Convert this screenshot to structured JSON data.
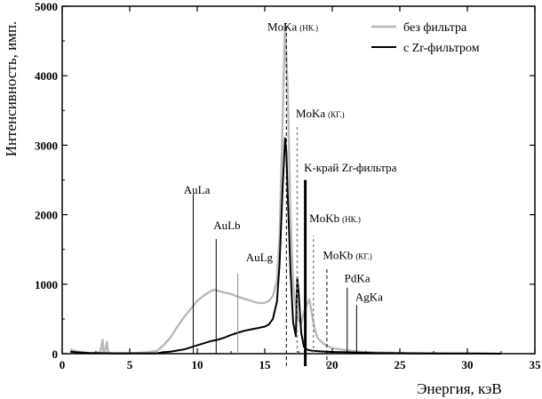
{
  "chart_data": {
    "type": "line",
    "xlabel": "Энергия,  кэВ",
    "ylabel": "Интенсивность,  имп.",
    "xlim": [
      0,
      35
    ],
    "ylim": [
      0,
      5000
    ],
    "xticks": [
      0,
      5,
      10,
      15,
      20,
      25,
      30,
      35
    ],
    "yticks": [
      0,
      1000,
      2000,
      3000,
      4000,
      5000
    ],
    "grid": false,
    "legend_position": "top-right",
    "colors": {
      "no_filter": "#b9b9b9",
      "zr_filter": "#000000"
    },
    "series": [
      {
        "name": "без фильтра",
        "key": "no_filter",
        "x": [
          0.6,
          0.8,
          1.2,
          2.0,
          2.8,
          3.0,
          3.05,
          3.15,
          3.3,
          3.4,
          3.5,
          3.7,
          4.0,
          5.0,
          6.0,
          7.0,
          7.5,
          8.0,
          8.5,
          9.0,
          9.5,
          10.0,
          10.5,
          11.0,
          11.3,
          11.6,
          12.0,
          12.5,
          13.0,
          13.5,
          14.0,
          14.5,
          15.0,
          15.3,
          15.6,
          15.9,
          16.1,
          16.3,
          16.5,
          16.7,
          16.9,
          17.1,
          17.3,
          17.5,
          17.7,
          17.9,
          18.1,
          18.3,
          18.5,
          18.7,
          18.9,
          19.2,
          19.5,
          20.0,
          21.0,
          22.0,
          23.0,
          24.0,
          25.0,
          27.0,
          29.0,
          31.0,
          32.5
        ],
        "values": [
          60,
          50,
          30,
          10,
          15,
          200,
          30,
          15,
          170,
          30,
          10,
          5,
          5,
          5,
          15,
          40,
          120,
          230,
          380,
          520,
          640,
          760,
          840,
          900,
          920,
          900,
          880,
          860,
          820,
          790,
          760,
          730,
          730,
          760,
          830,
          1050,
          1700,
          3200,
          4750,
          3800,
          2000,
          1000,
          650,
          480,
          430,
          600,
          700,
          780,
          560,
          350,
          230,
          170,
          120,
          80,
          50,
          30,
          20,
          15,
          10,
          5,
          3,
          2,
          0
        ]
      },
      {
        "name": "с  Zr-фильтром",
        "key": "zr_filter",
        "x": [
          0.6,
          1.0,
          2.0,
          4.0,
          6.0,
          7.0,
          7.5,
          8.0,
          9.0,
          10.0,
          11.0,
          11.5,
          12.0,
          12.5,
          13.0,
          13.5,
          14.0,
          14.5,
          15.0,
          15.3,
          15.6,
          15.9,
          16.1,
          16.3,
          16.5,
          16.6,
          16.7,
          16.9,
          17.1,
          17.3,
          17.4,
          17.5,
          17.7,
          17.9,
          18.1,
          18.3,
          18.6,
          19.0,
          19.5,
          20.0,
          21.0,
          22.0,
          23.0,
          24.0,
          26.0,
          28.0,
          30.0,
          32.5
        ],
        "values": [
          30,
          20,
          10,
          5,
          5,
          5,
          20,
          30,
          60,
          120,
          180,
          200,
          230,
          270,
          300,
          330,
          350,
          370,
          390,
          420,
          500,
          750,
          1300,
          2300,
          3100,
          2900,
          2300,
          1200,
          450,
          250,
          1100,
          900,
          300,
          100,
          60,
          50,
          40,
          35,
          30,
          25,
          20,
          15,
          10,
          8,
          5,
          3,
          2,
          0
        ]
      }
    ],
    "markers": [
      {
        "label": "AuLa",
        "sub": "",
        "x": 9.7,
        "top": 2300,
        "style": "thin",
        "lx": 9.0,
        "ly": 2300
      },
      {
        "label": "AuLb",
        "sub": "",
        "x": 11.4,
        "top": 1650,
        "style": "thin",
        "lx": 11.2,
        "ly": 1790
      },
      {
        "label": "AuLg",
        "sub": "",
        "x": 13.0,
        "top": 1150,
        "style": "thin-gray",
        "lx": 13.6,
        "ly": 1330
      },
      {
        "label": "MoKa",
        "sub": "(НК.)",
        "x": 16.6,
        "top": 4750,
        "style": "dash",
        "lx": 15.2,
        "ly": 4650
      },
      {
        "label": "MoKa",
        "sub": "(КГ.)",
        "x": 17.4,
        "top": 3300,
        "style": "dash-gray",
        "lx": 17.3,
        "ly": 3400
      },
      {
        "label": "K-край Zr-фильтра",
        "sub": "",
        "x": 18.0,
        "top": 2500,
        "style": "thick",
        "lx": 17.9,
        "ly": 2620
      },
      {
        "label": "MoKb",
        "sub": "(НК.)",
        "x": 18.6,
        "top": 1700,
        "style": "dash-gray",
        "lx": 18.3,
        "ly": 1890
      },
      {
        "label": "MoKb",
        "sub": "(КГ.)",
        "x": 19.6,
        "top": 1250,
        "style": "dash",
        "lx": 19.3,
        "ly": 1360
      },
      {
        "label": "PdKa",
        "sub": "",
        "x": 21.1,
        "top": 950,
        "style": "thin",
        "lx": 20.9,
        "ly": 1030
      },
      {
        "label": "AgKa",
        "sub": "",
        "x": 21.8,
        "top": 700,
        "style": "thin",
        "lx": 21.7,
        "ly": 760
      }
    ]
  }
}
